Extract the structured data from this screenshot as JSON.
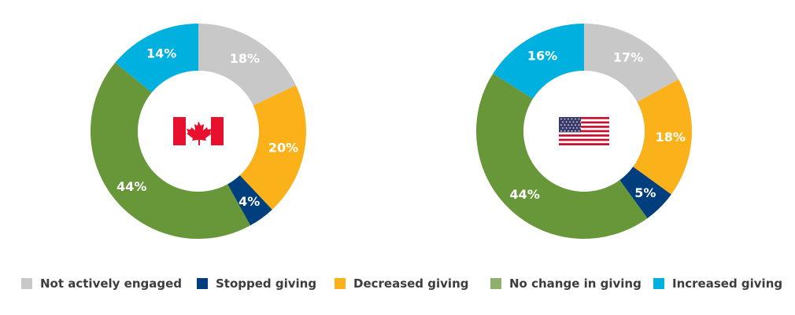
{
  "chart_data": [
    {
      "type": "pie",
      "variant": "donut",
      "center_icon": "canada-flag",
      "categories": [
        "Not actively engaged",
        "Decreased giving",
        "Stopped giving",
        "No change in giving",
        "Increased giving"
      ],
      "values": [
        18,
        20,
        4,
        44,
        14
      ],
      "labels": [
        "18%",
        "20%",
        "4%",
        "44%",
        "14%"
      ],
      "colors": [
        "#c8c8c8",
        "#fbb21a",
        "#003e7e",
        "#68973a",
        "#00b0de"
      ]
    },
    {
      "type": "pie",
      "variant": "donut",
      "center_icon": "us-flag",
      "categories": [
        "Not actively engaged",
        "Decreased giving",
        "Stopped giving",
        "No change in giving",
        "Increased giving"
      ],
      "values": [
        17,
        18,
        5,
        44,
        16
      ],
      "labels": [
        "17%",
        "18%",
        "5%",
        "44%",
        "16%"
      ],
      "colors": [
        "#c8c8c8",
        "#fbb21a",
        "#003e7e",
        "#68973a",
        "#00b0de"
      ]
    }
  ],
  "legend": {
    "position": "bottom",
    "items": [
      {
        "label": "Not actively engaged",
        "color": "#c8c8c8"
      },
      {
        "label": "Stopped giving",
        "color": "#003e7e"
      },
      {
        "label": "Decreased giving",
        "color": "#fbb21a"
      },
      {
        "label": "No change in giving",
        "color": "#8fb06a"
      },
      {
        "label": "Increased giving",
        "color": "#00b0de"
      }
    ]
  }
}
